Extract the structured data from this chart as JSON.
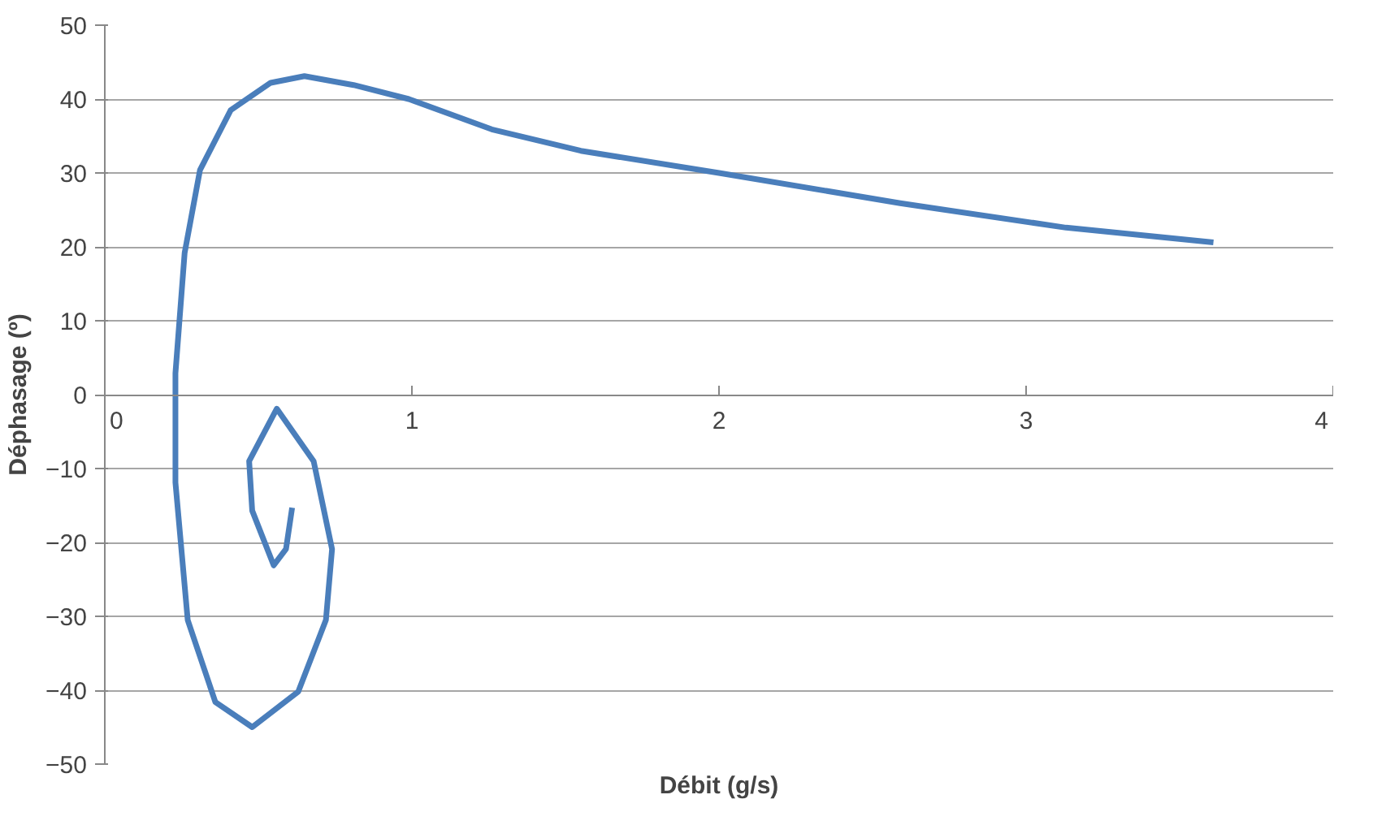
{
  "chart_data": {
    "type": "line",
    "xlabel": "Débit (g/s)",
    "ylabel": "Déphasage (º)",
    "xlim": [
      0,
      4
    ],
    "xticks": [
      0,
      1,
      2,
      3,
      4
    ],
    "ylim": [
      -50,
      50
    ],
    "yticks": [
      -50,
      -40,
      -30,
      -20,
      -10,
      0,
      10,
      20,
      30,
      40,
      50
    ],
    "grid": "y",
    "marker": "none",
    "line_style": "solid",
    "series": [
      {
        "color": "#4a7ebb",
        "x": [
          0.61,
          0.59,
          0.55,
          0.48,
          0.47,
          0.56,
          0.68,
          0.74,
          0.72,
          0.63,
          0.48,
          0.36,
          0.27,
          0.23,
          0.23,
          0.26,
          0.31,
          0.41,
          0.54,
          0.65,
          0.81,
          0.99,
          1.26,
          1.55,
          2.0,
          2.59,
          3.13,
          3.61
        ],
        "values": [
          -15.3,
          -20.9,
          -23.1,
          -15.7,
          -9,
          -1.9,
          -9,
          -20.9,
          -30.5,
          -40.2,
          -45,
          -41.6,
          -30.5,
          -11.9,
          2.9,
          19.2,
          30.4,
          38.5,
          42.2,
          43.1,
          41.9,
          40.0,
          35.9,
          33.0,
          30.0,
          25.9,
          22.6,
          20.6
        ]
      }
    ]
  }
}
